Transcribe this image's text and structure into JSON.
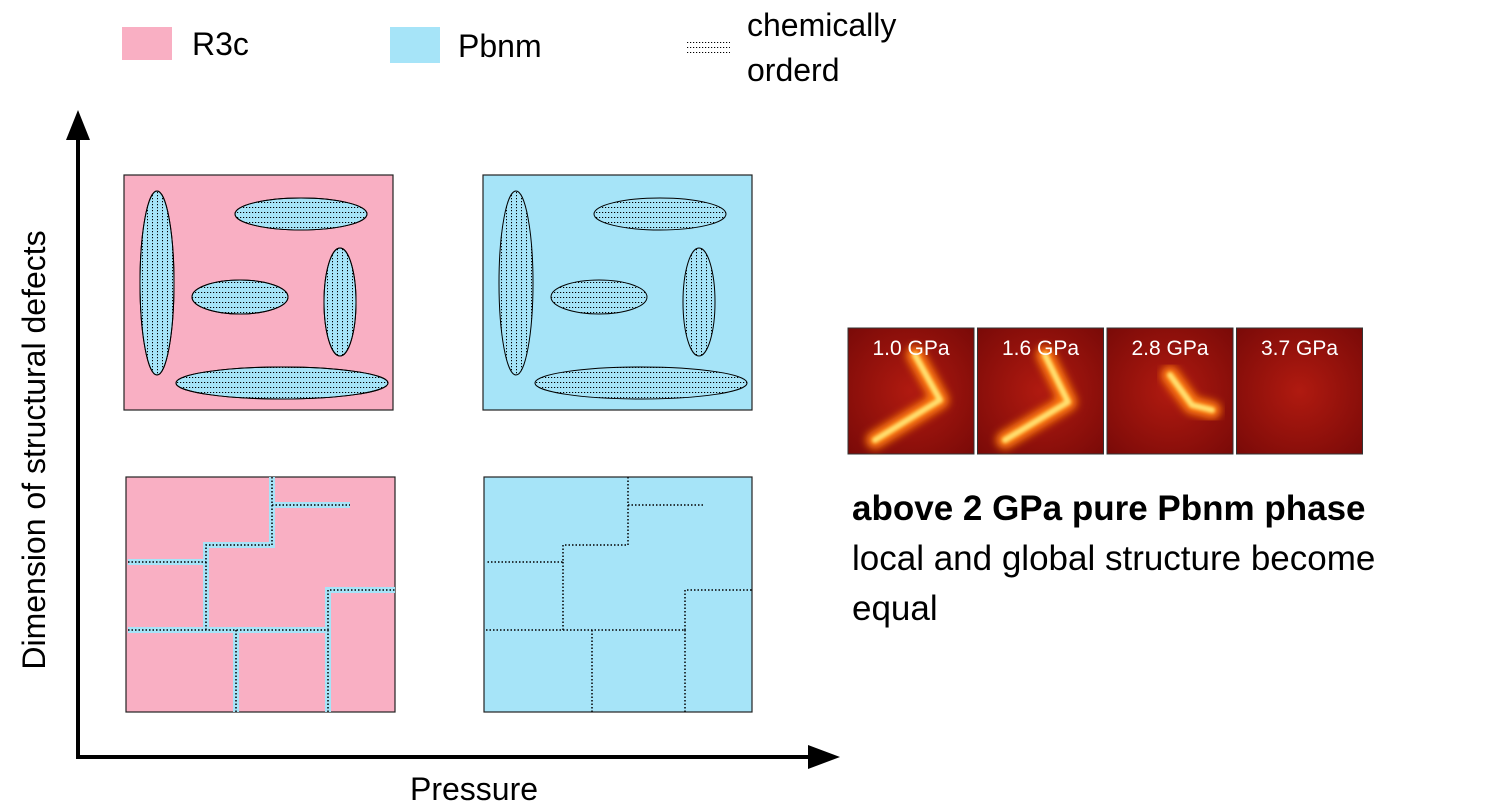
{
  "legend": [
    {
      "label": "R3c"
    },
    {
      "label": "Pbnm"
    },
    {
      "lines": [
        "chemically",
        "orderd"
      ]
    }
  ],
  "axes": {
    "y_label": "Dimension of structural defects",
    "x_label": "Pressure"
  },
  "images": [
    {
      "label": "1.0 GPa"
    },
    {
      "label": "1.6 GPa"
    },
    {
      "label": "2.8 GPa"
    },
    {
      "label": "3.7 GPa"
    }
  ],
  "text": {
    "heading": "above 2 GPa pure Pbnm phase",
    "body_lines": [
      "local and global structure become",
      "equal"
    ]
  }
}
